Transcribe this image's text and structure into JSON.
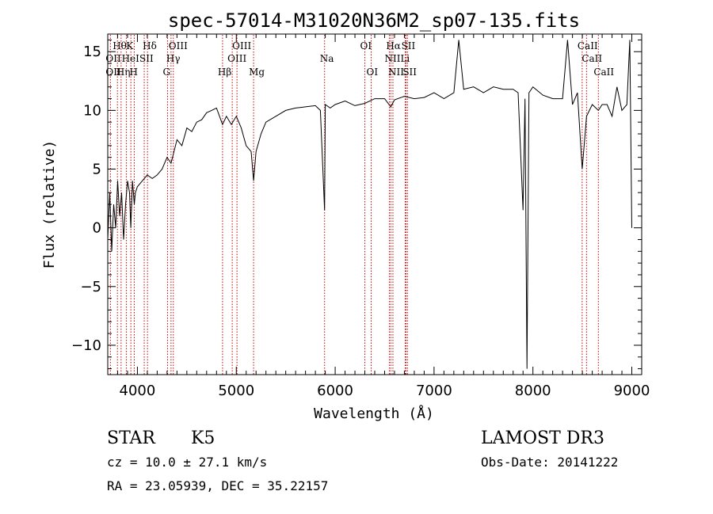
{
  "chart_data": {
    "type": "line",
    "title": "spec-57014-M31020N36M2_sp07-135.fits",
    "xlabel": "Wavelength (Å)",
    "ylabel": "Flux (relative)",
    "xlim": [
      3700,
      9100
    ],
    "ylim": [
      -12.5,
      16.5
    ],
    "x_ticks": [
      4000,
      5000,
      6000,
      7000,
      8000,
      9000
    ],
    "y_ticks": [
      -10,
      -5,
      0,
      5,
      10,
      15
    ],
    "grid": false,
    "series": [
      {
        "x": [
          3700,
          3720,
          3740,
          3760,
          3780,
          3800,
          3820,
          3840,
          3860,
          3880,
          3900,
          3920,
          3933,
          3950,
          3968,
          3980,
          4000,
          4050,
          4100,
          4150,
          4200,
          4250,
          4300,
          4340,
          4400,
          4450,
          4500,
          4550,
          4600,
          4650,
          4700,
          4750,
          4800,
          4861,
          4900,
          4950,
          5000,
          5050,
          5100,
          5150,
          5175,
          5200,
          5250,
          5300,
          5400,
          5500,
          5600,
          5700,
          5800,
          5850,
          5893,
          5900,
          5950,
          6000,
          6100,
          6200,
          6300,
          6400,
          6500,
          6563,
          6600,
          6700,
          6800,
          6900,
          7000,
          7100,
          7200,
          7250,
          7300,
          7400,
          7500,
          7600,
          7700,
          7800,
          7850,
          7900,
          7920,
          7940,
          7960,
          8000,
          8100,
          8200,
          8300,
          8350,
          8400,
          8450,
          8498,
          8542,
          8600,
          8662,
          8700,
          8750,
          8800,
          8850,
          8900,
          8950,
          8980,
          9000
        ],
        "values": [
          -1,
          3,
          -2,
          2,
          0,
          4,
          1,
          3,
          -1,
          2,
          4,
          3,
          0,
          4,
          2,
          3,
          3.5,
          4,
          4.5,
          4.2,
          4.5,
          5,
          6,
          5.5,
          7.5,
          7,
          8.5,
          8.2,
          9,
          9.2,
          9.8,
          10,
          10.2,
          8.8,
          9.5,
          8.8,
          9.5,
          8.5,
          7,
          6.5,
          4,
          6.5,
          8,
          9,
          9.5,
          10,
          10.2,
          10.3,
          10.4,
          10,
          1.5,
          10.5,
          10.2,
          10.5,
          10.8,
          10.4,
          10.6,
          11,
          11,
          10.3,
          10.9,
          11.2,
          11,
          11.1,
          11.5,
          11,
          11.5,
          16,
          11.8,
          12,
          11.5,
          12,
          11.8,
          11.8,
          11.5,
          1.5,
          11,
          -12,
          11.5,
          12,
          11.3,
          11,
          11,
          16,
          10.5,
          11.5,
          5,
          9.5,
          10.5,
          10,
          10.5,
          10.5,
          9.5,
          12,
          10,
          10.5,
          16,
          0
        ]
      }
    ],
    "spectral_lines": [
      {
        "label": "Hθ",
        "x": 3798,
        "row": 1
      },
      {
        "label": "OII",
        "x": 3727,
        "row": 2
      },
      {
        "label": "OII",
        "x": 3727,
        "row": 3
      },
      {
        "label": "Hη",
        "x": 3835,
        "row": 3
      },
      {
        "label": "HeI",
        "x": 3889,
        "row": 2
      },
      {
        "label": "K",
        "x": 3934,
        "row": 1
      },
      {
        "label": "H",
        "x": 3968,
        "row": 3
      },
      {
        "label": "SII",
        "x": 4069,
        "row": 2
      },
      {
        "label": "Hδ",
        "x": 4102,
        "row": 1
      },
      {
        "label": "OIII",
        "x": 4363,
        "row": 1
      },
      {
        "label": "Hγ",
        "x": 4340,
        "row": 2
      },
      {
        "label": "G",
        "x": 4305,
        "row": 3
      },
      {
        "label": "Hβ",
        "x": 4861,
        "row": 3
      },
      {
        "label": "OIII",
        "x": 5007,
        "row": 1
      },
      {
        "label": "OIII",
        "x": 4959,
        "row": 2
      },
      {
        "label": "Mg",
        "x": 5175,
        "row": 3
      },
      {
        "label": "Na",
        "x": 5893,
        "row": 2
      },
      {
        "label": "OI",
        "x": 6300,
        "row": 1
      },
      {
        "label": "OI",
        "x": 6364,
        "row": 3
      },
      {
        "label": "Hα",
        "x": 6563,
        "row": 1
      },
      {
        "label": "NII",
        "x": 6548,
        "row": 2
      },
      {
        "label": "NII",
        "x": 6584,
        "row": 3
      },
      {
        "label": "SII",
        "x": 6717,
        "row": 1
      },
      {
        "label": "Li",
        "x": 6708,
        "row": 2
      },
      {
        "label": "SII",
        "x": 6731,
        "row": 3
      },
      {
        "label": "CaII",
        "x": 8498,
        "row": 1
      },
      {
        "label": "CaII",
        "x": 8542,
        "row": 2
      },
      {
        "label": "CaII",
        "x": 8662,
        "row": 3
      }
    ]
  },
  "info": {
    "class": "STAR",
    "subclass": "K5",
    "survey": "LAMOST DR3",
    "cz": "cz = 10.0 ± 27.1 km/s",
    "obs_date": "Obs-Date: 20141222",
    "coords": "RA =  23.05939, DEC =  35.22157"
  },
  "colors": {
    "spectrum": "#000000",
    "line_markers": "#cc0000",
    "background": "#ffffff"
  }
}
